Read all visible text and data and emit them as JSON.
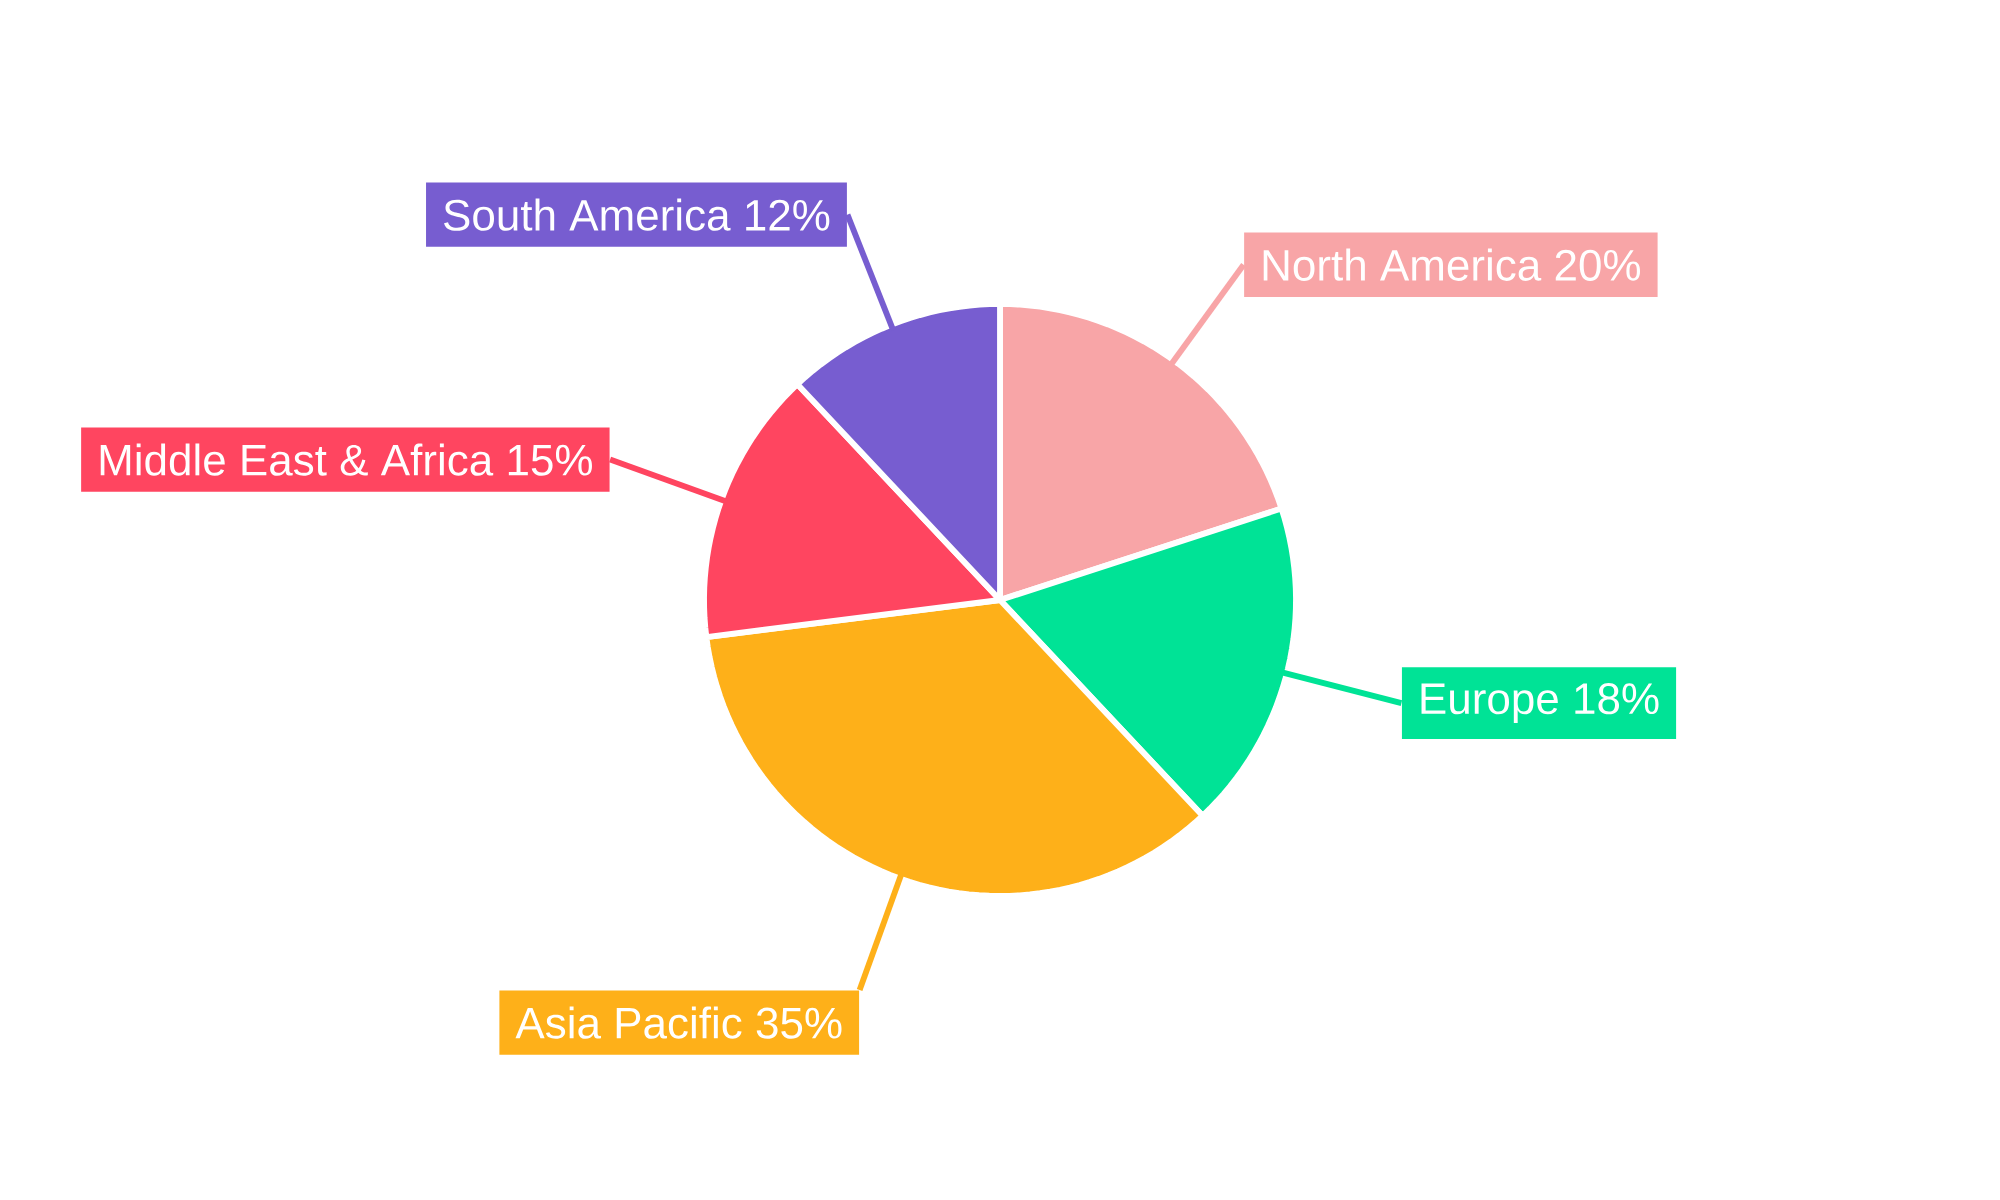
{
  "chart_data": {
    "type": "pie",
    "categories": [
      "North America",
      "Europe",
      "Asia Pacific",
      "Middle East & Africa",
      "South America"
    ],
    "values": [
      20,
      18,
      35,
      15,
      12
    ],
    "value_labels": [
      "20%",
      "18%",
      "35%",
      "15%",
      "12%"
    ],
    "colors": [
      "#f8a5a7",
      "#00e396",
      "#feb019",
      "#ff4560",
      "#775dd0"
    ]
  }
}
